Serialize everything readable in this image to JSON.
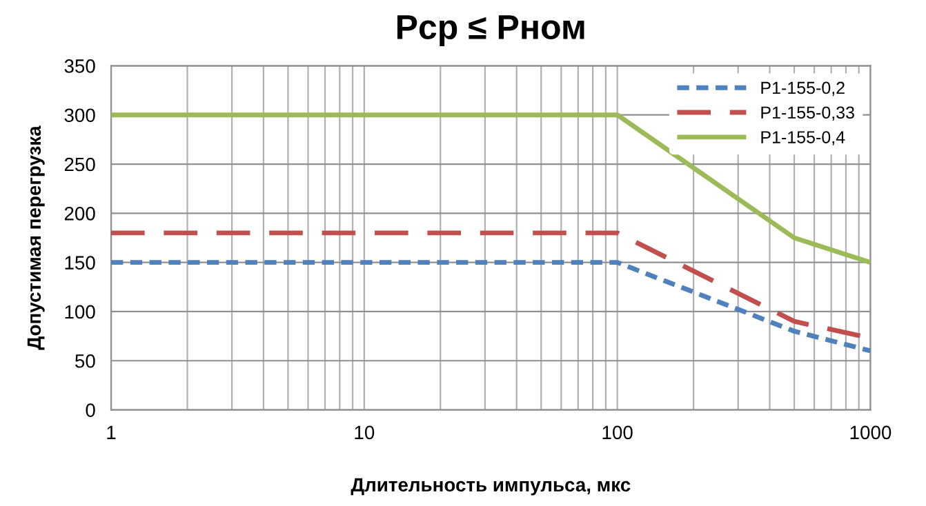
{
  "chart_data": {
    "type": "line",
    "title": "Рср ≤ Рном",
    "xlabel": "Длительность импульса, мкс",
    "ylabel": "Допустимая перегрузка",
    "log": "x",
    "xlim": [
      1,
      1000
    ],
    "xticks": [
      1,
      10,
      100,
      1000
    ],
    "ylim": [
      0,
      350
    ],
    "yticks": [
      0,
      50,
      100,
      150,
      200,
      250,
      300,
      350
    ],
    "grid": true,
    "legend": "top right",
    "series": [
      {
        "name": "Р1-155-0,2",
        "color": "#4f81bd",
        "line_style": "dotted",
        "x": [
          1,
          100,
          500,
          1000
        ],
        "values": [
          150,
          150,
          80,
          60
        ]
      },
      {
        "name": "Р1-155-0,33",
        "color": "#c0504d",
        "line_style": "dashed",
        "x": [
          1,
          100,
          500,
          1000
        ],
        "values": [
          180,
          180,
          90,
          73
        ]
      },
      {
        "name": "Р1-155-0,4",
        "color": "#9bbb59",
        "line_style": "solid",
        "x": [
          1,
          100,
          500,
          1000
        ],
        "values": [
          300,
          300,
          175,
          150
        ]
      }
    ]
  }
}
